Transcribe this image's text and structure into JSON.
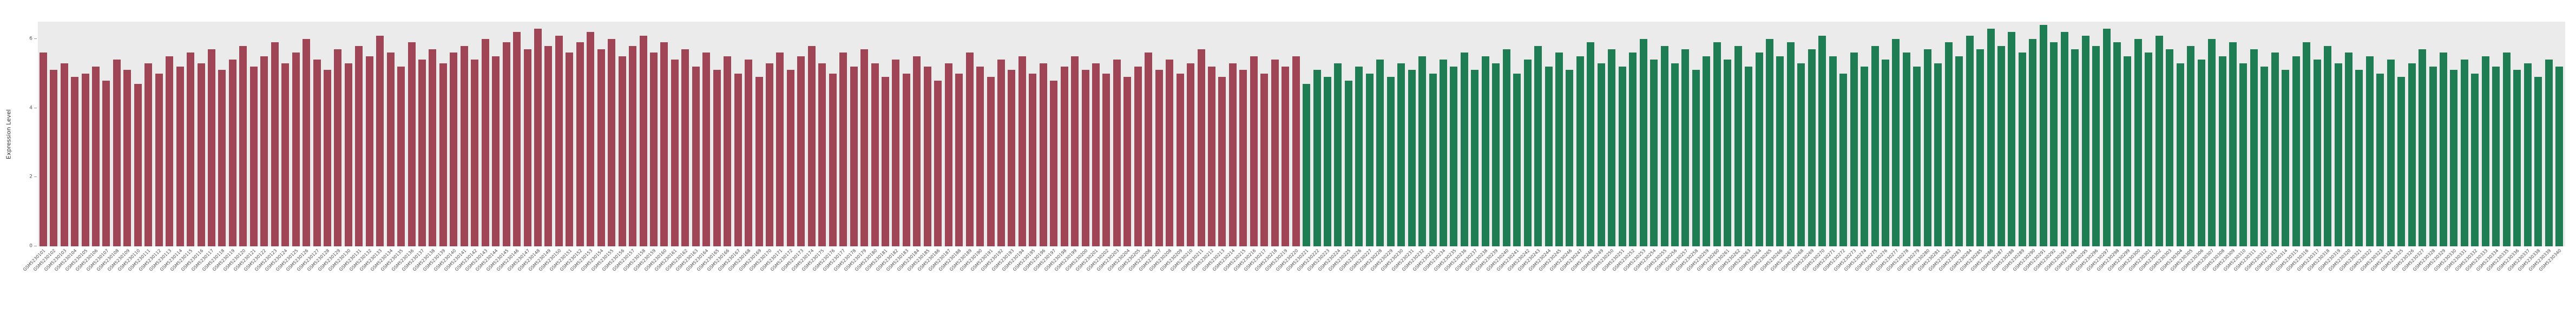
{
  "chart_data": {
    "type": "bar",
    "title": "",
    "xlabel": "",
    "ylabel": "Expression Level",
    "ylim": [
      0,
      6.5
    ],
    "yticks": [
      0,
      2,
      4,
      6
    ],
    "grid": false,
    "legend": null,
    "plot_background": "#ebebeb",
    "groups": [
      {
        "name": "series1-red",
        "color": "#a04556",
        "categories": [
          "GSM5230101",
          "GSM5230102",
          "GSM5230103",
          "GSM5230104",
          "GSM5230105",
          "GSM5230106",
          "GSM5230107",
          "GSM5230108",
          "GSM5230109",
          "GSM5230110",
          "GSM5230111",
          "GSM5230112",
          "GSM5230113",
          "GSM5230114",
          "GSM5230115",
          "GSM5230116",
          "GSM5230117",
          "GSM5230118",
          "GSM5230119",
          "GSM5230120",
          "GSM5230121",
          "GSM5230122",
          "GSM5230123",
          "GSM5230124",
          "GSM5230125",
          "GSM5230126",
          "GSM5230127",
          "GSM5230128",
          "GSM5230129",
          "GSM5230130",
          "GSM5230131",
          "GSM5230132",
          "GSM5230133",
          "GSM5230134",
          "GSM5230135",
          "GSM5230136",
          "GSM5230137",
          "GSM5230138",
          "GSM5230139",
          "GSM5230140",
          "GSM5230141",
          "GSM5230142",
          "GSM5230143",
          "GSM5230144",
          "GSM5230145",
          "GSM5230146",
          "GSM5230147",
          "GSM5230148",
          "GSM5230149",
          "GSM5230150",
          "GSM5230151",
          "GSM5230152",
          "GSM5230153",
          "GSM5230154",
          "GSM5230155",
          "GSM5230156",
          "GSM5230157",
          "GSM5230158",
          "GSM5230159",
          "GSM5230160",
          "GSM5230161",
          "GSM5230162",
          "GSM5230163",
          "GSM5230164",
          "GSM5230165",
          "GSM5230166",
          "GSM5230167",
          "GSM5230168",
          "GSM5230169",
          "GSM5230170",
          "GSM5230171",
          "GSM5230172",
          "GSM5230173",
          "GSM5230174",
          "GSM5230175",
          "GSM5230176",
          "GSM5230177",
          "GSM5230178",
          "GSM5230179",
          "GSM5230180",
          "GSM5230181",
          "GSM5230182",
          "GSM5230183",
          "GSM5230184",
          "GSM5230185",
          "GSM5230186",
          "GSM5230187",
          "GSM5230188",
          "GSM5230189",
          "GSM5230190",
          "GSM5230191",
          "GSM5230192",
          "GSM5230193",
          "GSM5230194",
          "GSM5230195",
          "GSM5230196",
          "GSM5230197",
          "GSM5230198",
          "GSM5230199",
          "GSM5230200",
          "GSM5230201",
          "GSM5230202",
          "GSM5230203",
          "GSM5230204",
          "GSM5230205",
          "GSM5230206",
          "GSM5230207",
          "GSM5230208",
          "GSM5230209",
          "GSM5230210",
          "GSM5230211",
          "GSM5230212",
          "GSM5230213",
          "GSM5230214",
          "GSM5230215",
          "GSM5230216",
          "GSM5230217",
          "GSM5230218",
          "GSM5230219",
          "GSM5230220"
        ],
        "values": [
          5.6,
          5.1,
          5.3,
          4.9,
          5.0,
          5.2,
          4.8,
          5.4,
          5.1,
          4.7,
          5.3,
          5.0,
          5.5,
          5.2,
          5.6,
          5.3,
          5.7,
          5.1,
          5.4,
          5.8,
          5.2,
          5.5,
          5.9,
          5.3,
          5.6,
          6.0,
          5.4,
          5.1,
          5.7,
          5.3,
          5.8,
          5.5,
          6.1,
          5.6,
          5.2,
          5.9,
          5.4,
          5.7,
          5.3,
          5.6,
          5.8,
          5.4,
          6.0,
          5.5,
          5.9,
          6.2,
          5.7,
          6.3,
          5.8,
          6.1,
          5.6,
          5.9,
          6.2,
          5.7,
          6.0,
          5.5,
          5.8,
          6.1,
          5.6,
          5.9,
          5.4,
          5.7,
          5.2,
          5.6,
          5.1,
          5.5,
          5.0,
          5.4,
          4.9,
          5.3,
          5.6,
          5.1,
          5.5,
          5.8,
          5.3,
          5.0,
          5.6,
          5.2,
          5.7,
          5.3,
          4.9,
          5.4,
          5.0,
          5.5,
          5.2,
          4.8,
          5.3,
          5.0,
          5.6,
          5.2,
          4.9,
          5.4,
          5.1,
          5.5,
          5.0,
          5.3,
          4.8,
          5.2,
          5.5,
          5.1,
          5.3,
          5.0,
          5.4,
          4.9,
          5.2,
          5.6,
          5.1,
          5.4,
          5.0,
          5.3,
          5.7,
          5.2,
          4.9,
          5.3,
          5.1,
          5.5,
          5.0,
          5.4,
          5.2,
          5.5
        ]
      },
      {
        "name": "series2-green",
        "color": "#1e7d52",
        "categories": [
          "GSM5230221",
          "GSM5230222",
          "GSM5230223",
          "GSM5230224",
          "GSM5230225",
          "GSM5230226",
          "GSM5230227",
          "GSM5230228",
          "GSM5230229",
          "GSM5230230",
          "GSM5230231",
          "GSM5230232",
          "GSM5230233",
          "GSM5230234",
          "GSM5230235",
          "GSM5230236",
          "GSM5230237",
          "GSM5230238",
          "GSM5230239",
          "GSM5230240",
          "GSM5230241",
          "GSM5230242",
          "GSM5230243",
          "GSM5230244",
          "GSM5230245",
          "GSM5230246",
          "GSM5230247",
          "GSM5230248",
          "GSM5230249",
          "GSM5230250",
          "GSM5230251",
          "GSM5230252",
          "GSM5230253",
          "GSM5230254",
          "GSM5230255",
          "GSM5230256",
          "GSM5230257",
          "GSM5230258",
          "GSM5230259",
          "GSM5230260",
          "GSM5230261",
          "GSM5230262",
          "GSM5230263",
          "GSM5230264",
          "GSM5230265",
          "GSM5230266",
          "GSM5230267",
          "GSM5230268",
          "GSM5230269",
          "GSM5230270",
          "GSM5230271",
          "GSM5230272",
          "GSM5230273",
          "GSM5230274",
          "GSM5230275",
          "GSM5230276",
          "GSM5230277",
          "GSM5230278",
          "GSM5230279",
          "GSM5230280",
          "GSM5230281",
          "GSM5230282",
          "GSM5230283",
          "GSM5230284",
          "GSM5230285",
          "GSM5230286",
          "GSM5230287",
          "GSM5230288",
          "GSM5230289",
          "GSM5230290",
          "GSM5230291",
          "GSM5230292",
          "GSM5230293",
          "GSM5230294",
          "GSM5230295",
          "GSM5230296",
          "GSM5230297",
          "GSM5230298",
          "GSM5230299",
          "GSM5230300",
          "GSM5230301",
          "GSM5230302",
          "GSM5230303",
          "GSM5230304",
          "GSM5230305",
          "GSM5230306",
          "GSM5230307",
          "GSM5230308",
          "GSM5230309",
          "GSM5230310",
          "GSM5230311",
          "GSM5230312",
          "GSM5230313",
          "GSM5230314",
          "GSM5230315",
          "GSM5230316",
          "GSM5230317",
          "GSM5230318",
          "GSM5230319",
          "GSM5230320",
          "GSM5230321",
          "GSM5230322",
          "GSM5230323",
          "GSM5230324",
          "GSM5230325",
          "GSM5230326",
          "GSM5230327",
          "GSM5230328",
          "GSM5230329",
          "GSM5230330",
          "GSM5230331",
          "GSM5230332",
          "GSM5230333",
          "GSM5230334",
          "GSM5230335",
          "GSM5230336",
          "GSM5230337",
          "GSM5230338",
          "GSM5230339",
          "GSM5230340"
        ],
        "values": [
          4.7,
          5.1,
          4.9,
          5.3,
          4.8,
          5.2,
          5.0,
          5.4,
          4.9,
          5.3,
          5.1,
          5.5,
          5.0,
          5.4,
          5.2,
          5.6,
          5.1,
          5.5,
          5.3,
          5.7,
          5.0,
          5.4,
          5.8,
          5.2,
          5.6,
          5.1,
          5.5,
          5.9,
          5.3,
          5.7,
          5.2,
          5.6,
          6.0,
          5.4,
          5.8,
          5.3,
          5.7,
          5.1,
          5.5,
          5.9,
          5.4,
          5.8,
          5.2,
          5.6,
          6.0,
          5.5,
          5.9,
          5.3,
          5.7,
          6.1,
          5.5,
          5.0,
          5.6,
          5.2,
          5.8,
          5.4,
          6.0,
          5.6,
          5.2,
          5.7,
          5.3,
          5.9,
          5.5,
          6.1,
          5.7,
          6.3,
          5.8,
          6.2,
          5.6,
          6.0,
          6.4,
          5.9,
          6.2,
          5.7,
          6.1,
          5.8,
          6.3,
          5.9,
          5.5,
          6.0,
          5.6,
          6.1,
          5.7,
          5.3,
          5.8,
          5.4,
          6.0,
          5.5,
          5.9,
          5.3,
          5.7,
          5.2,
          5.6,
          5.1,
          5.5,
          5.9,
          5.4,
          5.8,
          5.3,
          5.6,
          5.1,
          5.5,
          5.0,
          5.4,
          4.9,
          5.3,
          5.7,
          5.2,
          5.6,
          5.1,
          5.4,
          5.0,
          5.5,
          5.2,
          5.6,
          5.1,
          5.3,
          4.9,
          5.4,
          5.2
        ]
      }
    ]
  }
}
